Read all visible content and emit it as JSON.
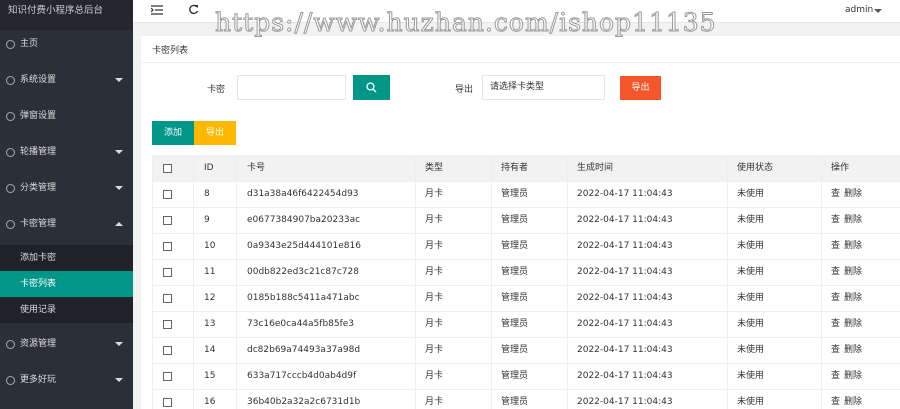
{
  "sidebar": {
    "title": "知识付费小程序总后台",
    "menu": [
      {
        "label": "主页"
      },
      {
        "label": "系统设置"
      },
      {
        "label": "弹窗设置"
      },
      {
        "label": "轮播管理"
      },
      {
        "label": "分类管理"
      },
      {
        "label": "卡密管理"
      }
    ],
    "submenu": [
      "添加卡密",
      "卡密列表",
      "使用记录"
    ],
    "menu_after": [
      {
        "label": "资源管理"
      },
      {
        "label": "更多好玩"
      }
    ]
  },
  "topbar": {
    "user": "admin"
  },
  "watermark": "https://www.huzhan.com/ishop11135",
  "card": {
    "title": "卡密列表"
  },
  "form": {
    "card_label": "卡密",
    "export_label": "导出",
    "select_placeholder": "请选择卡类型",
    "export_button": "导出"
  },
  "buttons": {
    "add": "添加",
    "export": "导出"
  },
  "table": {
    "headers": [
      "ID",
      "卡号",
      "类型",
      "持有者",
      "生成时间",
      "使用状态",
      "操作"
    ],
    "rows": [
      [
        "8",
        "d31a38a46f6422454d93",
        "月卡",
        "管理员",
        "2022-04-17 11:04:43",
        "未使用",
        "查",
        "删除"
      ],
      [
        "9",
        "e0677384907ba20233ac",
        "月卡",
        "管理员",
        "2022-04-17 11:04:43",
        "未使用",
        "查",
        "删除"
      ],
      [
        "10",
        "0a9343e25d444101e816",
        "月卡",
        "管理员",
        "2022-04-17 11:04:43",
        "未使用",
        "查",
        "删除"
      ],
      [
        "11",
        "00db822ed3c21c87c728",
        "月卡",
        "管理员",
        "2022-04-17 11:04:43",
        "未使用",
        "查",
        "删除"
      ],
      [
        "12",
        "0185b188c5411a471abc",
        "月卡",
        "管理员",
        "2022-04-17 11:04:43",
        "未使用",
        "查",
        "删除"
      ],
      [
        "13",
        "73c16e0ca44a5fb85fe3",
        "月卡",
        "管理员",
        "2022-04-17 11:04:43",
        "未使用",
        "查",
        "删除"
      ],
      [
        "14",
        "dc82b69a74493a37a98d",
        "月卡",
        "管理员",
        "2022-04-17 11:04:43",
        "未使用",
        "查",
        "删除"
      ],
      [
        "15",
        "633a717cccb4d0ab4d9f",
        "月卡",
        "管理员",
        "2022-04-17 11:04:43",
        "未使用",
        "查",
        "删除"
      ],
      [
        "16",
        "36b40b2a32a2c6731d1b",
        "月卡",
        "管理员",
        "2022-04-17 11:04:43",
        "未使用",
        "查",
        "删除"
      ]
    ]
  }
}
